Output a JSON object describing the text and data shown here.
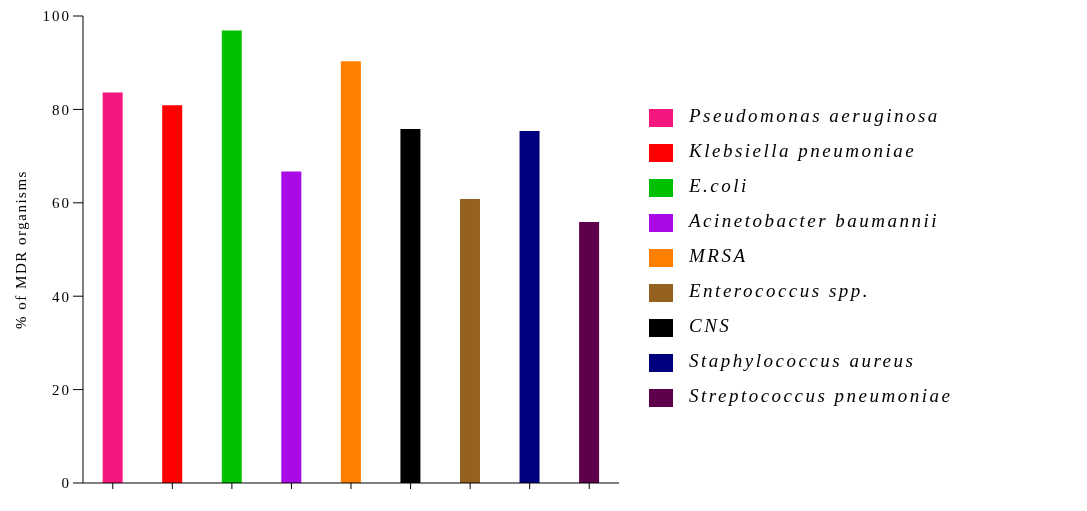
{
  "chart_data": {
    "type": "bar",
    "ylabel": "% of MDR organisms",
    "stacked": true,
    "categories": [
      null,
      null,
      null,
      null,
      null,
      null,
      null,
      null,
      null
    ],
    "series": [
      {
        "name": "Pseudomonas aeruginosa",
        "color": "#f5177f",
        "values": [
          83.6,
          null,
          null,
          null,
          null,
          null,
          null,
          null,
          null
        ]
      },
      {
        "name": "Klebsiella pneumoniae",
        "color": "#ff0000",
        "values": [
          null,
          80.9,
          null,
          null,
          null,
          null,
          null,
          null,
          null
        ]
      },
      {
        "name": "E.coli",
        "color": "#00c000",
        "values": [
          null,
          null,
          96.9,
          null,
          null,
          null,
          null,
          null,
          null
        ]
      },
      {
        "name": "Acinetobacter baumannii",
        "color": "#a90ae6",
        "values": [
          null,
          null,
          null,
          66.7,
          null,
          null,
          null,
          null,
          null
        ]
      },
      {
        "name": "MRSA",
        "color": "#ff8000",
        "values": [
          null,
          null,
          null,
          null,
          90.3,
          null,
          null,
          null,
          null
        ]
      },
      {
        "name": "Enterococcus spp.",
        "color": "#94611f",
        "values": [
          null,
          null,
          null,
          null,
          null,
          null,
          60.8,
          null,
          null
        ]
      },
      {
        "name": "CNS",
        "color": "#000000",
        "values": [
          null,
          null,
          null,
          null,
          null,
          75.8,
          null,
          null,
          null
        ]
      },
      {
        "name": "Staphylococcus aureus",
        "color": "#00007e",
        "values": [
          null,
          null,
          null,
          null,
          null,
          null,
          null,
          75.4,
          null
        ]
      },
      {
        "name": "Streptococcus pneumoniae",
        "color": "#5e004b",
        "values": [
          null,
          null,
          null,
          null,
          null,
          null,
          null,
          null,
          55.9
        ]
      }
    ],
    "ylim": [
      0,
      100
    ],
    "yticks": [
      0,
      20,
      40,
      60,
      80,
      100
    ],
    "legend": "right",
    "tick_labels": "y"
  }
}
